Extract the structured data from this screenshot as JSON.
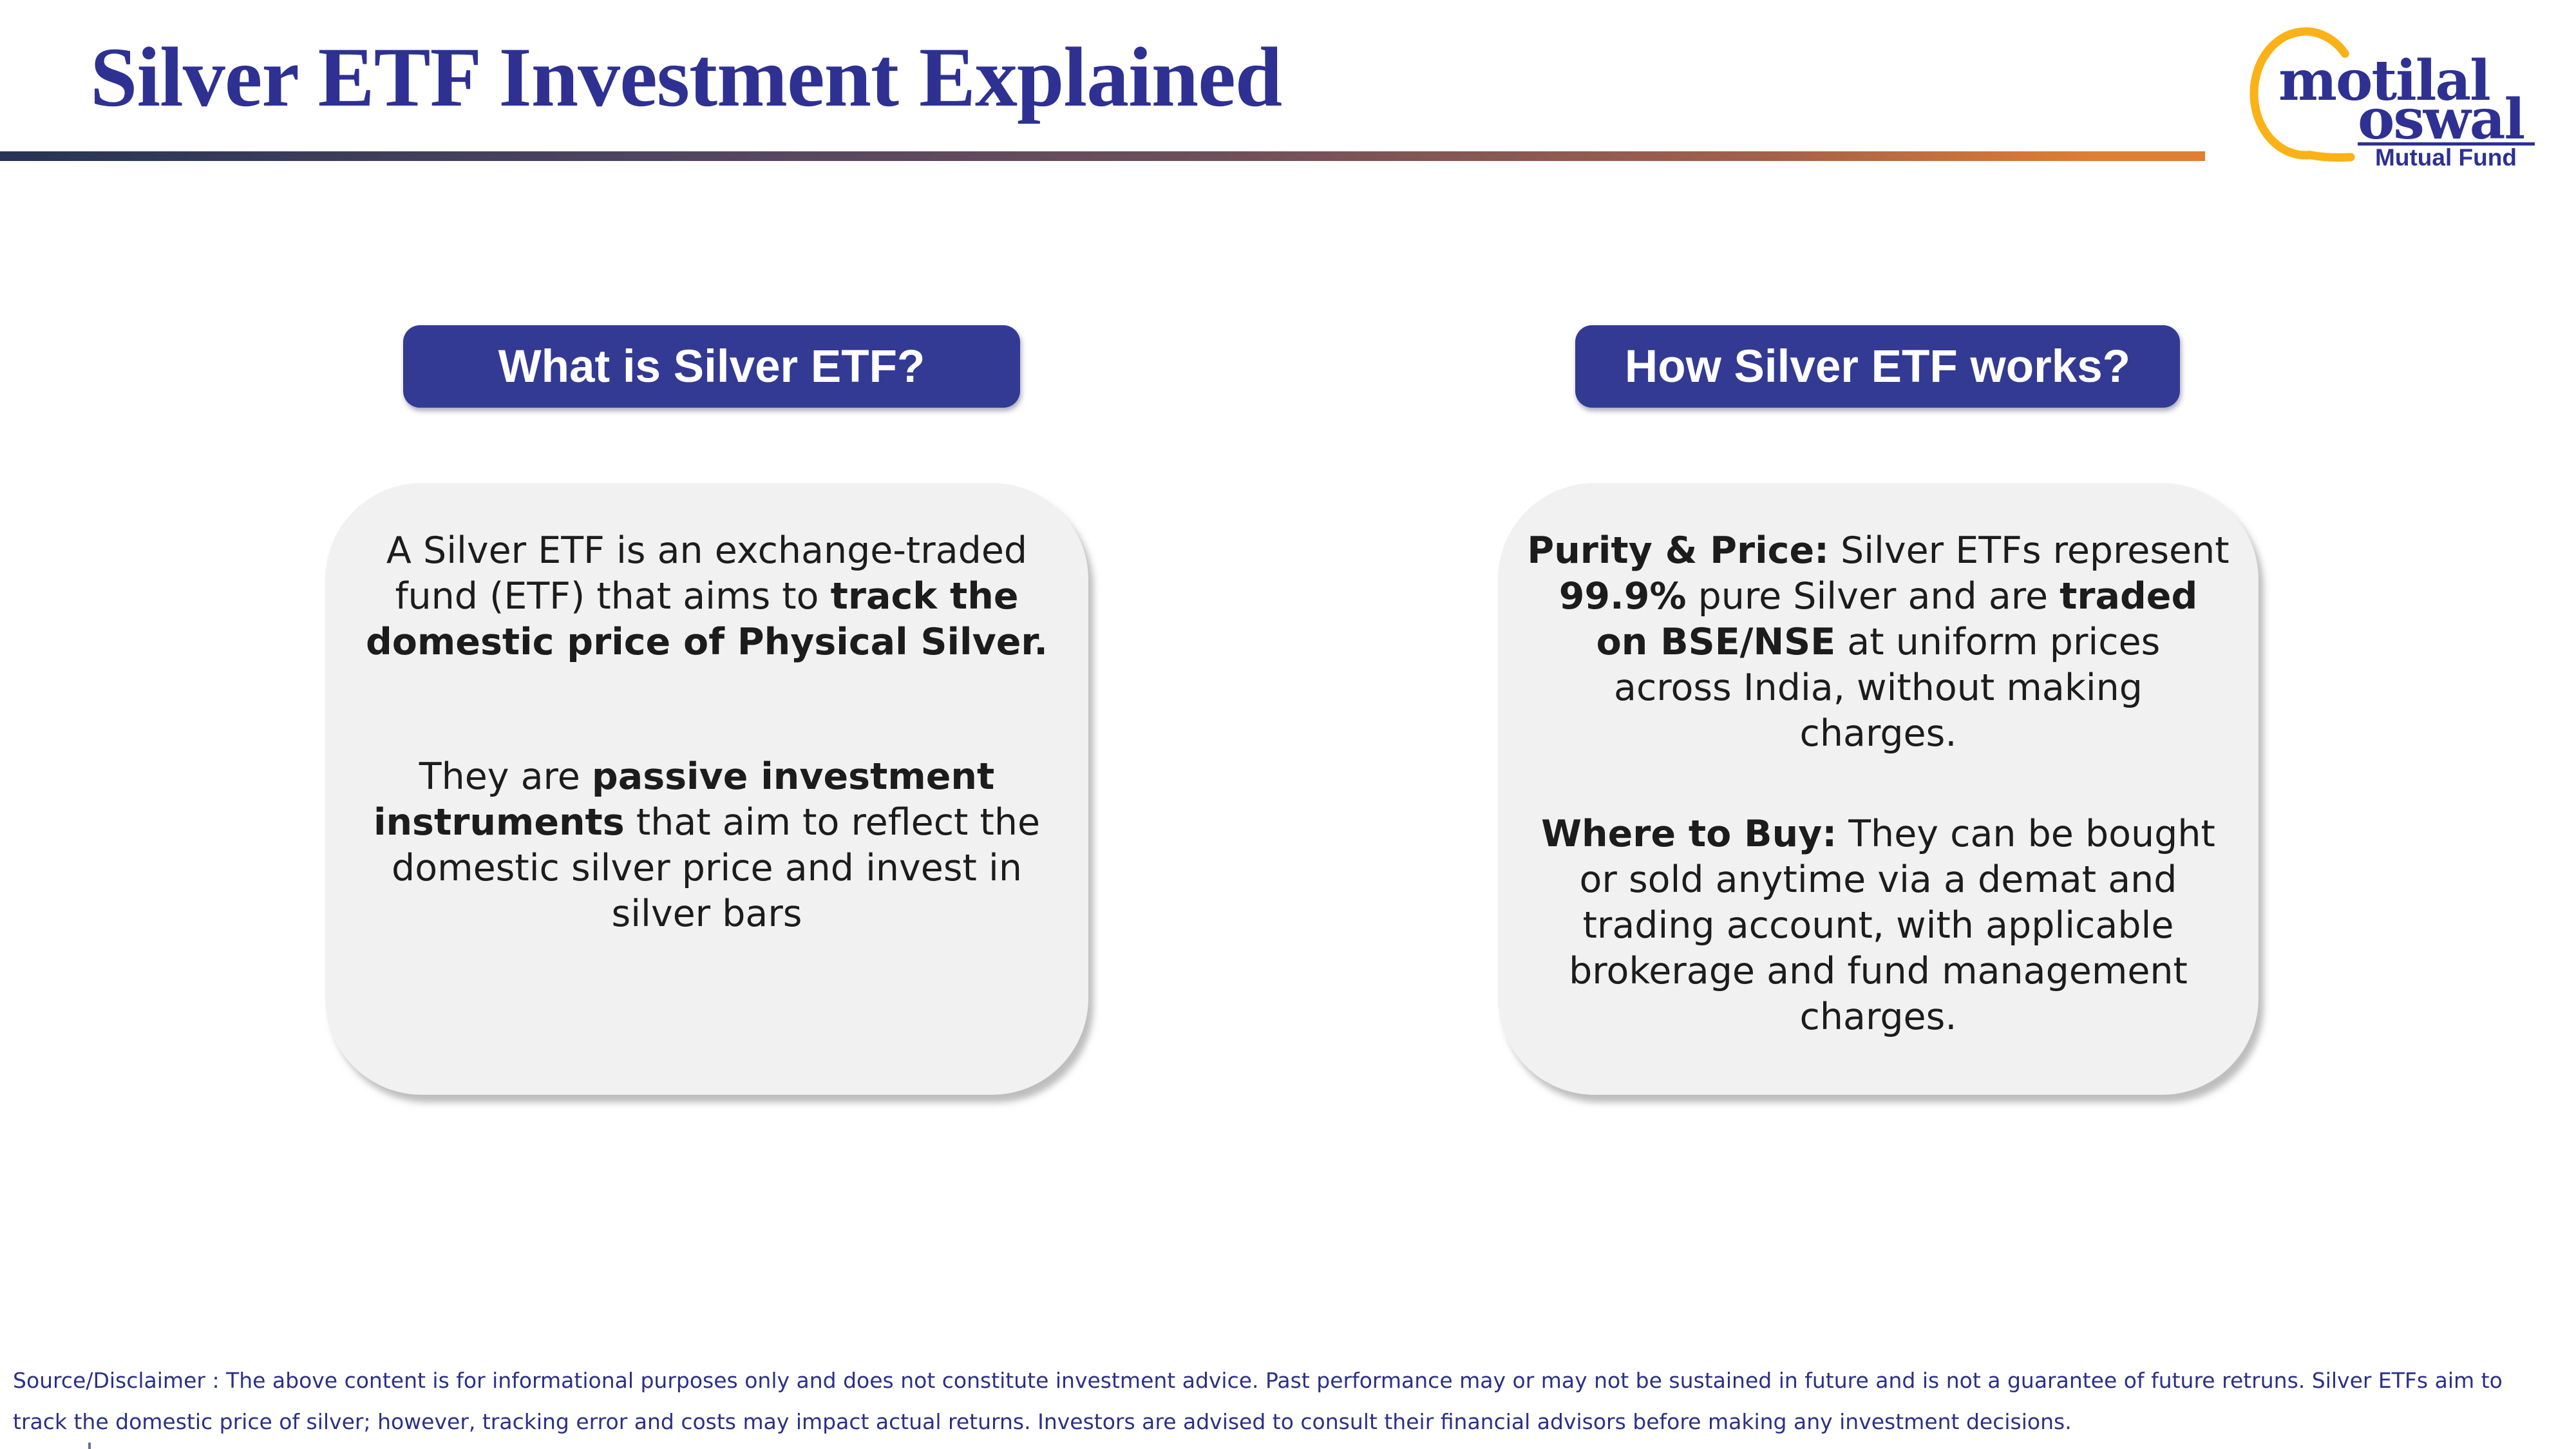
{
  "theme": {
    "title-color": "#2E3192",
    "btn-bg": "#333A94",
    "card-bg": "#F1F1F1",
    "text-color": "#1C1C1C",
    "footer-color": "#2B3087",
    "grad-1": "#273455",
    "grad-2": "#504560",
    "grad-3": "#6E4F5B",
    "grad-4": "#A2604B",
    "grad-5": "#E07E33",
    "logo-blue": "#2E3192",
    "logo-yellow": "#FBB217"
  },
  "header": {
    "title": "Silver ETF Investment Explained"
  },
  "logo": {
    "word1": "motilal",
    "word2": "oswal",
    "subtitle": "Mutual Fund"
  },
  "columns": [
    {
      "header": "What is Silver ETF?",
      "paragraphs": [
        [
          "A Silver ETF is an exchange-traded",
          "fund (ETF) that aims to **track the**",
          "**domestic price of Physical Silver.**"
        ],
        [
          "They are **passive investment**",
          "**instruments** that aim to reflect the",
          "domestic silver price and invest in",
          "silver bars"
        ]
      ]
    },
    {
      "header": "How Silver ETF works?",
      "paragraphs": [
        [
          "**Purity & Price:** Silver ETFs represent",
          "**99.9%** pure Silver and are **traded**",
          "**on BSE/NSE** at uniform prices",
          "across India, without making",
          "charges."
        ],
        [
          "**Where to Buy:** They can be bought",
          "or sold anytime via a demat and",
          "trading account, with applicable",
          "brokerage and fund management",
          "charges."
        ]
      ]
    }
  ],
  "footer": {
    "lines": [
      "Source/Disclaimer : The above content is for informational purposes only and does not constitute investment advice. Past performance may or may not be sustained in future and is not a guarantee of future retruns. Silver ETFs aim to",
      "track the domestic price of silver; however, tracking error and costs may impact actual returns. Investors are advised to consult their financial advisors before making any investment decisions."
    ]
  }
}
